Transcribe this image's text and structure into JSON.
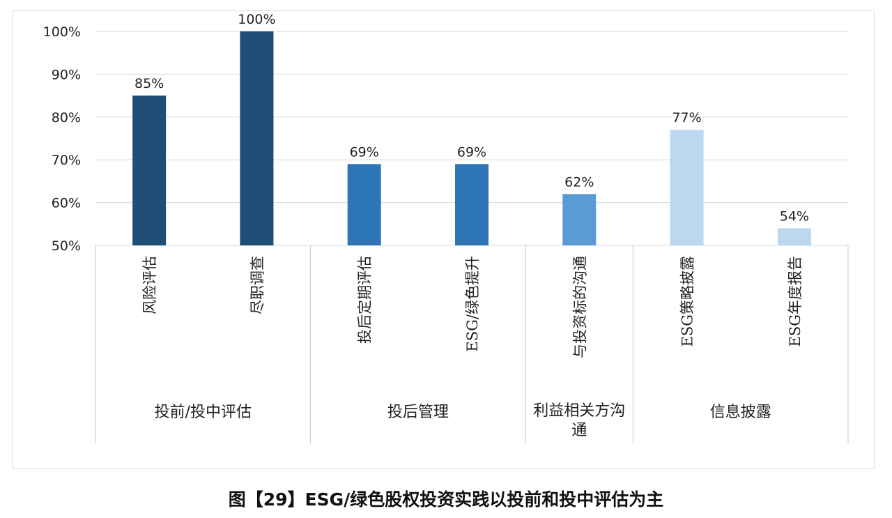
{
  "caption": "图【29】ESG/绿色股权投资实践以投前和投中评估为主",
  "chart_data": {
    "type": "bar",
    "ylim": [
      50,
      100
    ],
    "yticks": [
      "50%",
      "60%",
      "70%",
      "80%",
      "90%",
      "100%"
    ],
    "ytick_values": [
      50,
      60,
      70,
      80,
      90,
      100
    ],
    "grid": true,
    "categories": [
      "风险评估",
      "尽职调查",
      "投后定期评估",
      "ESG/绿色提升",
      "与投资标的沟通",
      "ESG策略披露",
      "ESG年度报告"
    ],
    "values": [
      85,
      100,
      69,
      69,
      62,
      77,
      54
    ],
    "value_labels": [
      "85%",
      "100%",
      "69%",
      "69%",
      "62%",
      "77%",
      "54%"
    ],
    "groups": [
      {
        "label": "投前/投中评估",
        "count": 2,
        "color": "#1f4e79"
      },
      {
        "label": "投后管理",
        "count": 2,
        "color": "#2e75b6"
      },
      {
        "label": "利益相关方沟通",
        "count": 1,
        "color": "#5b9bd5"
      },
      {
        "label": "信息披露",
        "count": 2,
        "color": "#bdd7ee"
      }
    ]
  }
}
